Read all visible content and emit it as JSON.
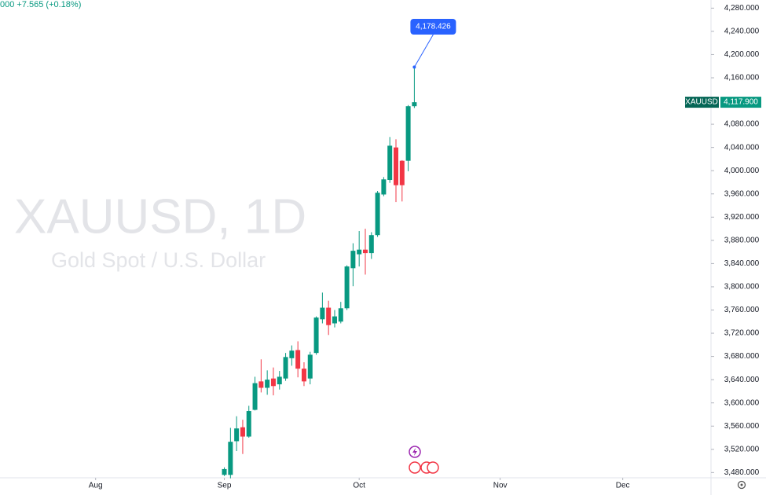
{
  "chart_data": {
    "type": "candlestick",
    "title": "XAUUSD, 1D",
    "subtitle": "Gold Spot / U.S. Dollar",
    "header": "000 +7.565 (+0.18%)",
    "up_color": "#089981",
    "down_color": "#f23645",
    "open": [
      3476,
      3476,
      3534,
      3558,
      3542,
      3588,
      3637,
      3626,
      3642,
      3632,
      3642,
      3677,
      3691,
      3659,
      3642,
      3686,
      3744,
      3764,
      3737,
      3740,
      3763,
      3832,
      3856,
      3864,
      3858,
      3889,
      3959,
      3984,
      4040,
      4017,
      4017,
      4111
    ],
    "high": [
      3489,
      3557,
      3577,
      3571,
      3595,
      3645,
      3675,
      3656,
      3661,
      3655,
      3686,
      3699,
      3706,
      3670,
      3688,
      3749,
      3790,
      3776,
      3760,
      3774,
      3837,
      3875,
      3896,
      3900,
      3894,
      3965,
      3989,
      4058,
      4054,
      4018,
      4113,
      4178.426
    ],
    "low": [
      3474,
      3470,
      3517,
      3512,
      3540,
      3587,
      3618,
      3614,
      3613,
      3623,
      3638,
      3664,
      3644,
      3629,
      3632,
      3683,
      3737,
      3717,
      3730,
      3737,
      3760,
      3801,
      3835,
      3821,
      3848,
      3886,
      3956,
      3979,
      3946,
      3947,
      3999,
      4108
    ],
    "close": [
      3486,
      3533,
      3556,
      3542,
      3586,
      3634,
      3626,
      3640,
      3629,
      3645,
      3679,
      3690,
      3659,
      3637,
      3683,
      3747,
      3764,
      3734,
      3749,
      3763,
      3835,
      3862,
      3864,
      3858,
      3889,
      3962,
      3985,
      4043,
      3975,
      3975,
      4111,
      4117.9
    ],
    "ylim": [
      3471,
      4294
    ],
    "yticks": [
      {
        "value": 3480,
        "label": "3,480.000"
      },
      {
        "value": 3520,
        "label": "3,520.000"
      },
      {
        "value": 3560,
        "label": "3,560.000"
      },
      {
        "value": 3600,
        "label": "3,600.000"
      },
      {
        "value": 3640,
        "label": "3,640.000"
      },
      {
        "value": 3680,
        "label": "3,680.000"
      },
      {
        "value": 3720,
        "label": "3,720.000"
      },
      {
        "value": 3760,
        "label": "3,760.000"
      },
      {
        "value": 3800,
        "label": "3,800.000"
      },
      {
        "value": 3840,
        "label": "3,840.000"
      },
      {
        "value": 3880,
        "label": "3,880.000"
      },
      {
        "value": 3920,
        "label": "3,920.000"
      },
      {
        "value": 3960,
        "label": "3,960.000"
      },
      {
        "value": 4000,
        "label": "4,000.000"
      },
      {
        "value": 4040,
        "label": "4,040.000"
      },
      {
        "value": 4080,
        "label": "4,080.000"
      },
      {
        "value": 4120,
        "label": "4,120.000"
      },
      {
        "value": 4160,
        "label": "4,160.000"
      },
      {
        "value": 4200,
        "label": "4,200.000"
      },
      {
        "value": 4240,
        "label": "4,240.000"
      },
      {
        "value": 4280,
        "label": "4,280.000"
      }
    ],
    "xlim": [
      -36.6,
      79.4
    ],
    "xticks": [
      {
        "value": -21,
        "label": "Aug"
      },
      {
        "value": 0,
        "label": "Sep"
      },
      {
        "value": 22,
        "label": "Oct"
      },
      {
        "value": 45,
        "label": "Nov"
      },
      {
        "value": 65,
        "label": "Dec"
      }
    ],
    "price_label": {
      "symbol": "XAUUSD",
      "value": 4117.9,
      "label": "4,117.900"
    },
    "high_label": {
      "value": 4178.426,
      "label": "4,178.426"
    }
  }
}
